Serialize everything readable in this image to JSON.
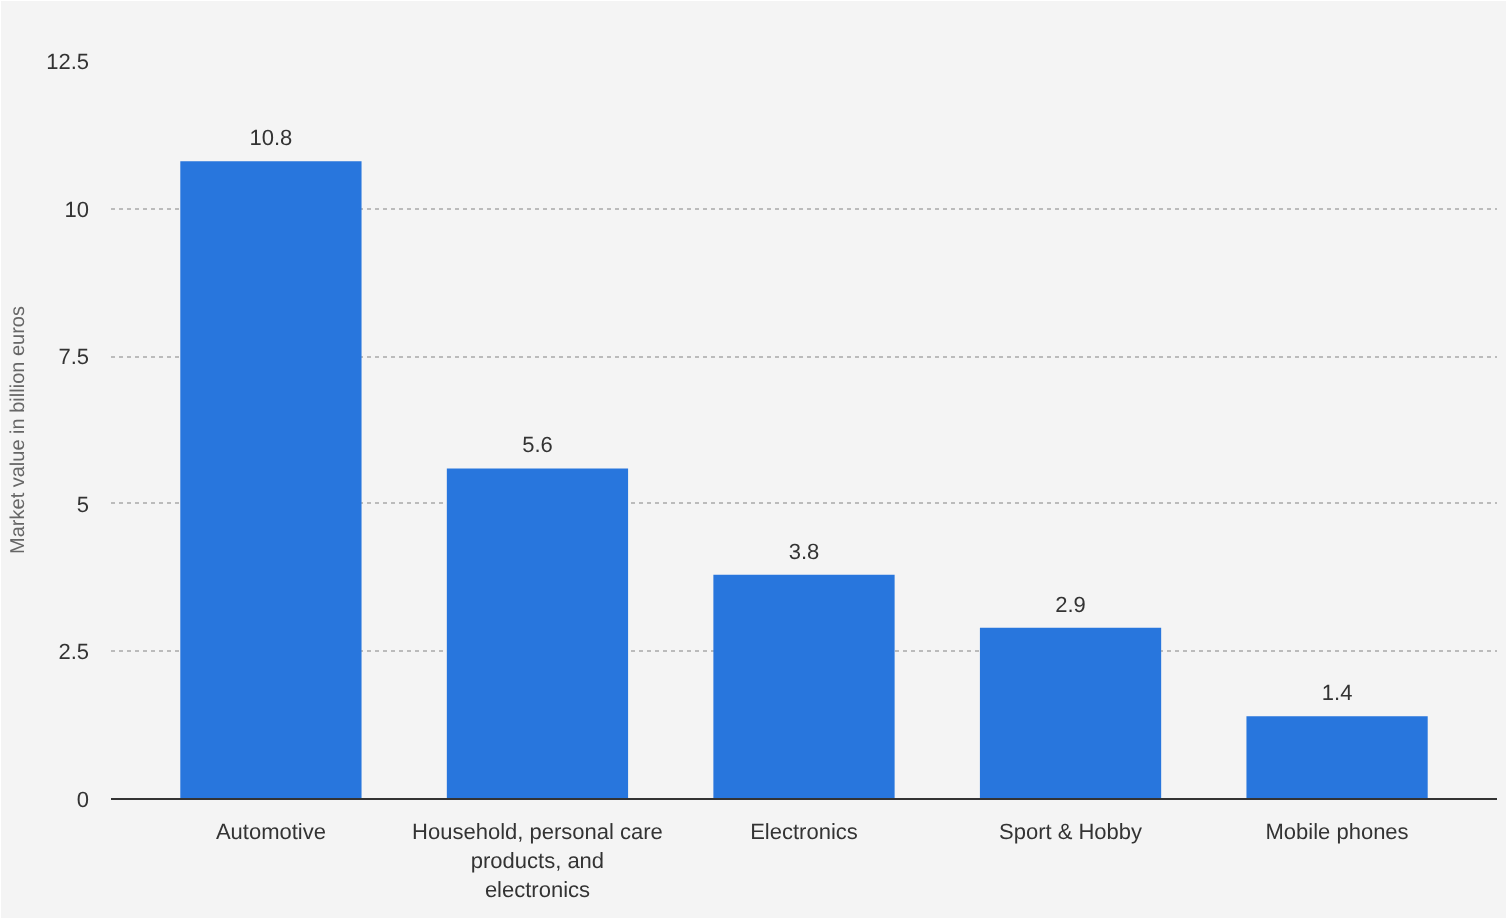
{
  "chart_data": {
    "type": "bar",
    "ylabel": "Market value in billion euros",
    "categories": [
      "Automotive",
      "Household, personal care products, and electronics",
      "Electronics",
      "Sport & Hobby",
      "Mobile phones"
    ],
    "values": [
      10.8,
      5.6,
      3.8,
      2.9,
      1.4
    ],
    "color": "#2876dd",
    "ylim": [
      0,
      12.5
    ],
    "yticks": [
      0,
      2.5,
      5,
      7.5,
      10,
      12.5
    ],
    "grid": "y",
    "data_labels": true
  }
}
